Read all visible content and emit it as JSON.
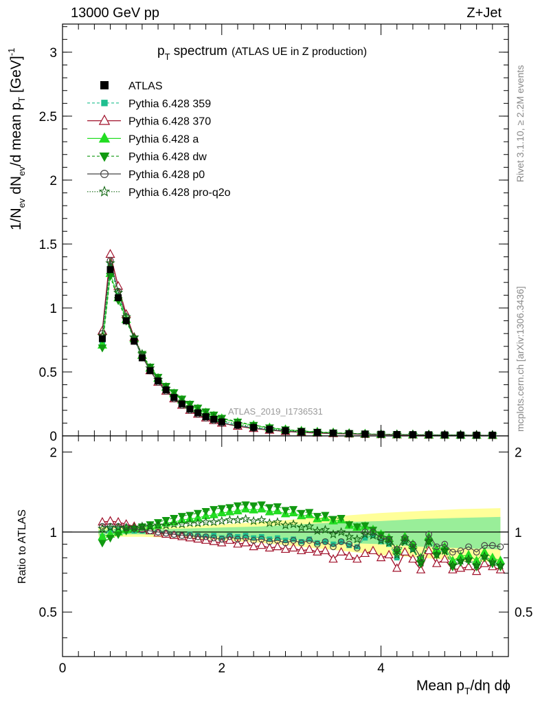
{
  "header": {
    "left": "13000 GeV pp",
    "right": "Z+Jet"
  },
  "side_labels": {
    "rivet": "Rivet 3.1.10, ≥ 2.2M events",
    "mcplots": "mcplots.cern.ch [arXiv:1306.3436]"
  },
  "watermark": "ATLAS_2019_I1736531",
  "colors": {
    "ATLAS": "#000000",
    "p359": "#1fbf8f",
    "p370": "#a0102a",
    "pa": "#22dd22",
    "pdw": "#119911",
    "pp0": "#444444",
    "pq2o": "#116611",
    "band_yellow": "#ffff99",
    "band_green": "#99ee99"
  },
  "chart_data": [
    {
      "type": "scatter",
      "title": "p_T spectrum (ATLAS UE in Z production)",
      "title_parts": {
        "main": "p",
        "sub": "T",
        "rest": " spectrum",
        "paren": "(ATLAS UE in Z production)"
      },
      "ylabel": "1/N_ev dN_ev/d mean p_T [GeV]^-1",
      "ylim": [
        0,
        3.22
      ],
      "y_ticks": [
        "0",
        "0.5",
        "1",
        "1.5",
        "2",
        "2.5",
        "3"
      ],
      "xlim": [
        0,
        5.6
      ],
      "grid": false,
      "legend_position": "top-left",
      "x": [
        0.5,
        0.6,
        0.7,
        0.8,
        0.9,
        1.0,
        1.1,
        1.2,
        1.3,
        1.4,
        1.5,
        1.6,
        1.7,
        1.8,
        1.9,
        2.0,
        2.2,
        2.4,
        2.6,
        2.8,
        3.0,
        3.2,
        3.4,
        3.6,
        3.8,
        4.0,
        4.2,
        4.4,
        4.6,
        4.8,
        5.0,
        5.2,
        5.4
      ],
      "series": [
        {
          "name": "ATLAS",
          "key": "ATLAS",
          "values": [
            0.76,
            1.3,
            1.08,
            0.9,
            0.74,
            0.61,
            0.51,
            0.43,
            0.36,
            0.3,
            0.25,
            0.21,
            0.18,
            0.15,
            0.13,
            0.11,
            0.085,
            0.066,
            0.052,
            0.041,
            0.033,
            0.027,
            0.022,
            0.018,
            0.015,
            0.013,
            0.011,
            0.01,
            0.009,
            0.008,
            0.007,
            0.006,
            0.006
          ]
        },
        {
          "name": "Pythia 6.428 359",
          "key": "p359",
          "values": [
            0.73,
            1.33,
            1.1,
            0.91,
            0.75,
            0.62,
            0.52,
            0.43,
            0.36,
            0.3,
            0.25,
            0.21,
            0.18,
            0.15,
            0.13,
            0.11,
            0.085,
            0.066,
            0.051,
            0.04,
            0.031,
            0.025,
            0.02,
            0.016,
            0.013,
            0.011,
            0.009,
            0.008,
            0.007,
            0.006,
            0.006,
            0.005,
            0.005
          ]
        },
        {
          "name": "Pythia 6.428 370",
          "key": "p370",
          "values": [
            0.82,
            1.42,
            1.17,
            0.95,
            0.77,
            0.63,
            0.51,
            0.42,
            0.35,
            0.29,
            0.24,
            0.2,
            0.17,
            0.14,
            0.12,
            0.1,
            0.076,
            0.058,
            0.045,
            0.035,
            0.028,
            0.022,
            0.018,
            0.015,
            0.012,
            0.01,
            0.008,
            0.007,
            0.006,
            0.006,
            0.005,
            0.005,
            0.004
          ]
        },
        {
          "name": "Pythia 6.428 a",
          "key": "pa",
          "values": [
            0.71,
            1.27,
            1.08,
            0.91,
            0.76,
            0.63,
            0.53,
            0.45,
            0.38,
            0.33,
            0.28,
            0.24,
            0.21,
            0.18,
            0.155,
            0.135,
            0.105,
            0.082,
            0.063,
            0.049,
            0.038,
            0.03,
            0.024,
            0.019,
            0.015,
            0.012,
            0.01,
            0.009,
            0.008,
            0.007,
            0.006,
            0.005,
            0.005
          ]
        },
        {
          "name": "Pythia 6.428 dw",
          "key": "pdw",
          "values": [
            0.69,
            1.25,
            1.06,
            0.9,
            0.76,
            0.64,
            0.54,
            0.46,
            0.39,
            0.34,
            0.29,
            0.25,
            0.22,
            0.19,
            0.165,
            0.14,
            0.11,
            0.085,
            0.065,
            0.05,
            0.039,
            0.031,
            0.025,
            0.02,
            0.016,
            0.013,
            0.011,
            0.009,
            0.008,
            0.007,
            0.006,
            0.005,
            0.005
          ]
        },
        {
          "name": "Pythia 6.428 p0",
          "key": "pp0",
          "values": [
            0.8,
            1.37,
            1.13,
            0.93,
            0.76,
            0.62,
            0.51,
            0.42,
            0.35,
            0.29,
            0.24,
            0.2,
            0.17,
            0.14,
            0.12,
            0.1,
            0.079,
            0.061,
            0.047,
            0.037,
            0.029,
            0.024,
            0.019,
            0.016,
            0.013,
            0.011,
            0.009,
            0.008,
            0.007,
            0.006,
            0.006,
            0.005,
            0.005
          ]
        },
        {
          "name": "Pythia 6.428 pro-q2o",
          "key": "pq2o",
          "values": [
            0.78,
            1.35,
            1.12,
            0.93,
            0.77,
            0.64,
            0.53,
            0.44,
            0.37,
            0.31,
            0.26,
            0.22,
            0.19,
            0.16,
            0.14,
            0.12,
            0.092,
            0.071,
            0.055,
            0.043,
            0.034,
            0.027,
            0.022,
            0.018,
            0.014,
            0.012,
            0.01,
            0.009,
            0.008,
            0.007,
            0.006,
            0.005,
            0.005
          ]
        }
      ]
    },
    {
      "type": "scatter",
      "ylabel": "Ratio to ATLAS",
      "ylim": [
        0.34,
        2.3
      ],
      "y_ticks_left": [
        "0.5",
        "1",
        "2"
      ],
      "y_ticks_right": [
        "0.5",
        "1",
        "2"
      ],
      "xlim": [
        0,
        5.6
      ],
      "x_ticks": [
        "0",
        "2",
        "4"
      ],
      "xlabel": "Mean p_T/dη dϕ",
      "xlabel_parts": {
        "a": "Mean p",
        "sub": "T",
        "b": "/dη dϕ"
      },
      "reference_line": 1,
      "band_x": [
        0.45,
        1.0,
        1.5,
        2.0,
        2.5,
        3.0,
        3.5,
        4.0,
        4.5,
        5.0,
        5.5
      ],
      "band_yellow": [
        0.04,
        0.04,
        0.05,
        0.07,
        0.09,
        0.12,
        0.15,
        0.18,
        0.2,
        0.22,
        0.23
      ],
      "band_green": [
        0.02,
        0.02,
        0.03,
        0.04,
        0.05,
        0.07,
        0.09,
        0.1,
        0.12,
        0.13,
        0.14
      ],
      "x": [
        0.5,
        0.6,
        0.7,
        0.8,
        0.9,
        1.0,
        1.1,
        1.2,
        1.3,
        1.4,
        1.5,
        1.6,
        1.7,
        1.8,
        1.9,
        2.0,
        2.1,
        2.2,
        2.3,
        2.4,
        2.5,
        2.6,
        2.7,
        2.8,
        2.9,
        3.0,
        3.1,
        3.2,
        3.3,
        3.4,
        3.5,
        3.6,
        3.7,
        3.8,
        3.9,
        4.0,
        4.1,
        4.2,
        4.3,
        4.4,
        4.5,
        4.6,
        4.7,
        4.8,
        4.9,
        5.0,
        5.1,
        5.2,
        5.3,
        5.4,
        5.5
      ],
      "series": [
        {
          "name": "Pythia 6.428 359",
          "key": "p359",
          "values": [
            0.96,
            1.02,
            1.02,
            1.01,
            1.01,
            1.01,
            1.01,
            1.0,
            0.99,
            0.98,
            0.97,
            0.98,
            0.97,
            0.96,
            0.97,
            0.95,
            0.97,
            0.96,
            0.97,
            0.95,
            0.96,
            0.94,
            0.95,
            0.93,
            0.94,
            0.92,
            0.94,
            0.91,
            0.92,
            0.9,
            0.92,
            0.89,
            0.88,
            0.95,
            0.97,
            0.92,
            0.9,
            0.8,
            0.92,
            0.86,
            0.76,
            0.94,
            0.83,
            0.86,
            0.77,
            0.79,
            0.8,
            0.76,
            0.82,
            0.77,
            0.76
          ]
        },
        {
          "name": "Pythia 6.428 370",
          "key": "p370",
          "values": [
            1.09,
            1.1,
            1.09,
            1.07,
            1.05,
            1.03,
            1.01,
            0.99,
            0.98,
            0.97,
            0.96,
            0.95,
            0.94,
            0.93,
            0.92,
            0.91,
            0.93,
            0.9,
            0.91,
            0.88,
            0.89,
            0.87,
            0.88,
            0.86,
            0.87,
            0.85,
            0.86,
            0.84,
            0.85,
            0.79,
            0.84,
            0.81,
            0.79,
            0.83,
            0.85,
            0.8,
            0.82,
            0.73,
            0.84,
            0.79,
            0.72,
            0.85,
            0.76,
            0.79,
            0.72,
            0.73,
            0.74,
            0.71,
            0.76,
            0.74,
            0.72
          ]
        },
        {
          "name": "Pythia 6.428 a",
          "key": "pa",
          "values": [
            0.96,
            0.98,
            1.0,
            1.02,
            1.03,
            1.04,
            1.05,
            1.06,
            1.08,
            1.09,
            1.11,
            1.12,
            1.13,
            1.15,
            1.16,
            1.18,
            1.19,
            1.2,
            1.22,
            1.21,
            1.22,
            1.19,
            1.2,
            1.17,
            1.18,
            1.15,
            1.16,
            1.12,
            1.13,
            1.1,
            1.11,
            1.06,
            1.04,
            1.05,
            1.02,
            0.98,
            0.95,
            0.86,
            0.96,
            0.9,
            0.8,
            0.96,
            0.86,
            0.88,
            0.78,
            0.81,
            0.82,
            0.78,
            0.84,
            0.8,
            0.78
          ]
        },
        {
          "name": "Pythia 6.428 dw",
          "key": "pdw",
          "values": [
            0.91,
            0.95,
            0.98,
            1.01,
            1.03,
            1.05,
            1.07,
            1.09,
            1.11,
            1.13,
            1.15,
            1.16,
            1.18,
            1.2,
            1.22,
            1.23,
            1.24,
            1.26,
            1.27,
            1.26,
            1.27,
            1.24,
            1.25,
            1.21,
            1.22,
            1.18,
            1.19,
            1.15,
            1.16,
            1.12,
            1.13,
            1.07,
            1.05,
            1.06,
            1.02,
            0.98,
            0.94,
            0.84,
            0.94,
            0.88,
            0.76,
            0.92,
            0.82,
            0.85,
            0.74,
            0.77,
            0.78,
            0.74,
            0.8,
            0.76,
            0.74
          ]
        },
        {
          "name": "Pythia 6.428 p0",
          "key": "pp0",
          "values": [
            1.05,
            1.05,
            1.05,
            1.04,
            1.03,
            1.02,
            1.01,
            1.0,
            0.99,
            0.98,
            0.97,
            0.97,
            0.96,
            0.96,
            0.95,
            0.94,
            0.96,
            0.94,
            0.95,
            0.93,
            0.94,
            0.92,
            0.93,
            0.91,
            0.93,
            0.91,
            0.93,
            0.9,
            0.92,
            0.88,
            0.92,
            0.9,
            0.87,
            1.0,
            1.0,
            0.95,
            0.94,
            0.86,
            0.95,
            0.9,
            0.8,
            0.98,
            0.88,
            0.9,
            0.84,
            0.85,
            0.88,
            0.84,
            0.89,
            0.89,
            0.88
          ]
        },
        {
          "name": "Pythia 6.428 pro-q2o",
          "key": "pq2o",
          "values": [
            1.03,
            1.04,
            1.04,
            1.04,
            1.04,
            1.05,
            1.05,
            1.06,
            1.06,
            1.07,
            1.07,
            1.08,
            1.08,
            1.09,
            1.09,
            1.1,
            1.11,
            1.11,
            1.12,
            1.1,
            1.11,
            1.08,
            1.09,
            1.06,
            1.07,
            1.04,
            1.05,
            1.01,
            1.02,
            0.98,
            1.0,
            0.96,
            0.94,
            0.98,
            0.97,
            0.93,
            0.91,
            0.82,
            0.92,
            0.86,
            0.77,
            0.92,
            0.82,
            0.85,
            0.75,
            0.78,
            0.79,
            0.75,
            0.81,
            0.77,
            0.75
          ]
        }
      ]
    }
  ]
}
